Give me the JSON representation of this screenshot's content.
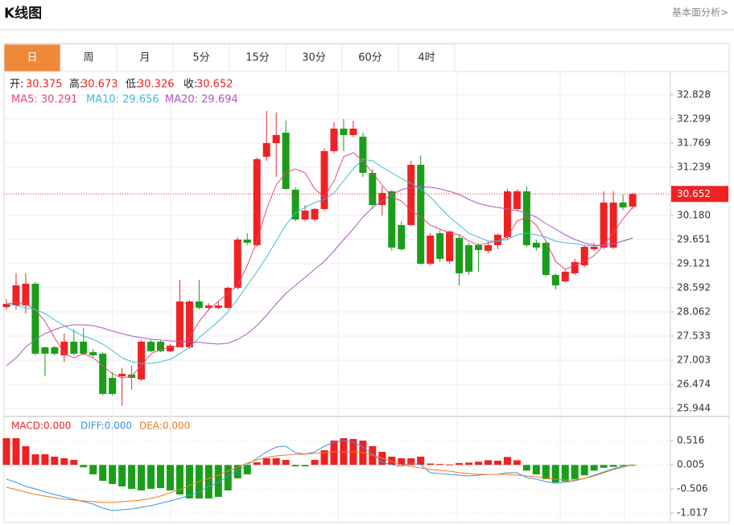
{
  "header": {
    "title": "K线图",
    "link": "基本面分析>"
  },
  "tabs": [
    "日",
    "周",
    "月",
    "5分",
    "15分",
    "30分",
    "60分",
    "4时"
  ],
  "active_tab": 0,
  "chart_data": [
    {
      "type": "candlestick",
      "info": [
        {
          "label": "开:",
          "value": "30.375"
        },
        {
          "label": "高:",
          "value": "30.673"
        },
        {
          "label": "低:",
          "value": "30.326"
        },
        {
          "label": "收:",
          "value": "30.652"
        }
      ],
      "up_color": "#ee2222",
      "down_color": "#1a9e1a",
      "open": [
        28.168,
        28.204,
        28.204,
        28.681,
        27.286,
        27.286,
        27.11,
        27.409,
        27.409,
        27.18,
        27.145,
        26.615,
        26.651,
        26.686,
        26.58,
        27.409,
        27.409,
        27.198,
        27.286,
        27.286,
        28.292,
        28.151,
        28.151,
        28.151,
        28.592,
        29.651,
        29.528,
        31.469,
        31.769,
        31.998,
        30.745,
        30.092,
        30.092,
        30.322,
        31.593,
        32.087,
        31.946,
        31.91,
        31.116,
        30.41,
        30.71,
        29.969,
        29.969,
        31.292,
        29.121,
        29.792,
        29.174,
        29.687,
        29.528,
        29.528,
        29.404,
        29.528,
        29.704,
        30.322,
        30.71,
        29.581,
        29.581,
        28.874,
        28.733,
        28.91,
        29.086,
        29.439,
        29.475,
        29.475,
        30.463,
        30.375
      ],
      "high": [
        28.345,
        28.91,
        28.91,
        28.72,
        27.3,
        27.32,
        27.586,
        27.674,
        27.709,
        27.25,
        27.18,
        26.739,
        26.827,
        26.88,
        27.45,
        27.45,
        27.44,
        27.35,
        28.769,
        28.32,
        28.769,
        28.25,
        28.292,
        28.62,
        29.7,
        29.792,
        31.45,
        32.475,
        32.44,
        32.263,
        30.8,
        30.41,
        30.35,
        31.65,
        32.228,
        32.3,
        32.263,
        31.998,
        31.2,
        30.816,
        30.74,
        30.05,
        31.381,
        31.5,
        29.792,
        29.85,
        29.85,
        29.757,
        29.581,
        29.581,
        29.6,
        29.792,
        30.76,
        30.75,
        30.816,
        29.651,
        29.628,
        28.91,
        29.0,
        29.227,
        29.528,
        29.581,
        30.71,
        30.71,
        30.64,
        30.673
      ],
      "low": [
        28.116,
        28.116,
        28.027,
        27.11,
        26.651,
        27.11,
        26.968,
        27.11,
        27.11,
        27.05,
        26.227,
        26.227,
        25.997,
        26.351,
        26.55,
        27.18,
        27.18,
        27.18,
        27.286,
        27.25,
        28.116,
        28.1,
        28.116,
        28.116,
        28.557,
        29.528,
        29.492,
        31.381,
        31.028,
        30.745,
        30.05,
        30.05,
        30.05,
        30.286,
        31.55,
        31.593,
        31.9,
        31.028,
        30.322,
        30.18,
        29.404,
        29.404,
        29.95,
        29.1,
        29.086,
        29.157,
        29.121,
        28.645,
        28.874,
        28.945,
        29.35,
        29.439,
        29.651,
        30.286,
        29.492,
        29.404,
        28.85,
        28.557,
        28.7,
        28.874,
        29.05,
        29.404,
        29.439,
        29.439,
        30.3,
        30.326
      ],
      "close": [
        28.239,
        28.645,
        28.681,
        27.145,
        27.145,
        27.145,
        27.409,
        27.145,
        27.145,
        27.11,
        26.262,
        26.262,
        26.704,
        26.615,
        27.409,
        27.198,
        27.198,
        27.321,
        28.292,
        28.292,
        28.151,
        28.204,
        28.204,
        28.592,
        29.651,
        29.581,
        31.416,
        31.769,
        31.946,
        30.763,
        30.092,
        30.286,
        30.322,
        31.593,
        32.087,
        31.946,
        32.087,
        31.116,
        30.41,
        30.675,
        29.475,
        29.439,
        31.292,
        29.121,
        29.739,
        29.227,
        29.828,
        28.91,
        28.945,
        29.421,
        29.528,
        29.757,
        30.71,
        30.71,
        29.528,
        29.475,
        28.874,
        28.645,
        28.945,
        29.157,
        29.492,
        29.492,
        30.463,
        30.463,
        30.357,
        30.652
      ],
      "series": [
        {
          "name": "MA5: 30.291",
          "color": "#e8457e",
          "values": [
            28.239,
            28.274,
            28.239,
            28.115,
            27.851,
            27.498,
            27.145,
            27.056,
            27.145,
            27.056,
            26.88,
            26.703,
            26.615,
            26.65,
            26.88,
            27.145,
            27.233,
            27.286,
            27.321,
            27.498,
            27.851,
            28.115,
            28.292,
            28.468,
            28.645,
            29.086,
            29.616,
            30.322,
            30.851,
            31.116,
            31.204,
            31.116,
            30.763,
            30.586,
            30.939,
            31.469,
            31.557,
            31.381,
            31.116,
            30.851,
            30.586,
            30.498,
            30.286,
            30.145,
            29.969,
            29.88,
            29.792,
            29.757,
            29.616,
            29.527,
            29.58,
            29.616,
            29.704,
            30.057,
            30.145,
            29.969,
            29.616,
            29.174,
            28.998,
            29.086,
            29.174,
            29.298,
            29.527,
            29.792,
            30.11,
            30.357
          ]
        },
        {
          "name": "MA10: 29.656",
          "color": "#3cbcd8",
          "values": [
            28.239,
            28.204,
            28.151,
            28.115,
            28.027,
            27.886,
            27.762,
            27.639,
            27.533,
            27.462,
            27.356,
            27.215,
            27.056,
            26.968,
            26.933,
            26.933,
            26.968,
            27.021,
            27.145,
            27.286,
            27.498,
            27.674,
            27.851,
            28.062,
            28.345,
            28.645,
            28.945,
            29.263,
            29.616,
            29.969,
            30.233,
            30.357,
            30.463,
            30.533,
            30.675,
            30.939,
            31.204,
            31.416,
            31.381,
            31.239,
            31.116,
            30.992,
            30.886,
            30.763,
            30.586,
            30.357,
            30.145,
            29.969,
            29.792,
            29.704,
            29.616,
            29.616,
            29.651,
            29.757,
            29.792,
            29.757,
            29.704,
            29.616,
            29.58,
            29.563,
            29.527,
            29.51,
            29.527,
            29.563,
            29.616,
            29.686
          ]
        },
        {
          "name": "MA20: 29.694",
          "color": "#b155c4",
          "values": [
            26.88,
            27.056,
            27.286,
            27.462,
            27.586,
            27.674,
            27.745,
            27.78,
            27.78,
            27.762,
            27.709,
            27.639,
            27.586,
            27.533,
            27.498,
            27.462,
            27.445,
            27.427,
            27.409,
            27.409,
            27.392,
            27.374,
            27.356,
            27.374,
            27.462,
            27.586,
            27.762,
            27.992,
            28.239,
            28.468,
            28.645,
            28.821,
            28.998,
            29.174,
            29.404,
            29.651,
            29.88,
            30.145,
            30.357,
            30.498,
            30.64,
            30.745,
            30.798,
            30.816,
            30.798,
            30.763,
            30.71,
            30.64,
            30.533,
            30.445,
            30.392,
            30.357,
            30.322,
            30.286,
            30.233,
            30.145,
            30.004,
            29.88,
            29.757,
            29.651,
            29.58,
            29.527,
            29.527,
            29.563,
            29.616,
            29.686
          ]
        }
      ],
      "ylim": [
        25.767,
        33.322
      ],
      "yticks": [
        32.828,
        32.299,
        31.769,
        31.239,
        {
          "value": 30.18,
          "label": "30.180"
        },
        29.651,
        29.121,
        28.592,
        28.062,
        27.533,
        27.003,
        26.474,
        25.944
      ],
      "last_price": 30.652,
      "grid": true
    },
    {
      "type": "macd",
      "histogram_name": "MACD:0.000",
      "values": [
        0.567,
        0.567,
        0.397,
        0.226,
        0.226,
        0.175,
        0.141,
        0.107,
        -0.05,
        -0.199,
        -0.336,
        -0.404,
        -0.455,
        -0.506,
        -0.54,
        -0.506,
        -0.489,
        -0.54,
        -0.625,
        -0.71,
        -0.71,
        -0.71,
        -0.676,
        -0.54,
        -0.285,
        -0.199,
        0.056,
        0.141,
        0.141,
        0.107,
        -0.03,
        -0.03,
        0.107,
        0.311,
        0.516,
        0.567,
        0.55,
        0.516,
        0.397,
        0.278,
        0.175,
        0.141,
        0.141,
        0.175,
        0.03,
        0.02,
        0.01,
        0.04,
        0.05,
        0.07,
        0.1,
        0.09,
        0.17,
        0.1,
        -0.12,
        -0.2,
        -0.3,
        -0.37,
        -0.35,
        -0.3,
        -0.22,
        -0.12,
        -0.06,
        -0.04,
        -0.02,
        -0.01
      ],
      "series": [
        {
          "name": "DIFF:0.000",
          "color": "#3a95e0",
          "values": [
            -0.302,
            -0.37,
            -0.455,
            -0.506,
            -0.574,
            -0.625,
            -0.676,
            -0.727,
            -0.778,
            -0.829,
            -0.915,
            -0.966,
            -0.949,
            -0.932,
            -0.898,
            -0.864,
            -0.812,
            -0.761,
            -0.71,
            -0.642,
            -0.574,
            -0.455,
            -0.37,
            -0.233,
            -0.114,
            0.005,
            0.141,
            0.277,
            0.38,
            0.397,
            0.26,
            0.226,
            0.277,
            0.397,
            0.482,
            0.516,
            0.482,
            0.38,
            0.226,
            0.056,
            0.005,
            -0.029,
            0.039,
            0.005,
            -0.165,
            -0.182,
            -0.199,
            -0.216,
            -0.233,
            -0.216,
            -0.199,
            -0.199,
            -0.165,
            -0.165,
            -0.267,
            -0.302,
            -0.353,
            -0.387,
            -0.37,
            -0.336,
            -0.285,
            -0.216,
            -0.148,
            -0.08,
            -0.029,
            0.005
          ]
        },
        {
          "name": "DEA:0.000",
          "color": "#f07a1e",
          "values": [
            -0.472,
            -0.523,
            -0.574,
            -0.625,
            -0.659,
            -0.693,
            -0.727,
            -0.744,
            -0.761,
            -0.778,
            -0.795,
            -0.795,
            -0.778,
            -0.761,
            -0.744,
            -0.71,
            -0.659,
            -0.591,
            -0.523,
            -0.438,
            -0.353,
            -0.285,
            -0.216,
            -0.131,
            -0.046,
            0.039,
            0.107,
            0.158,
            0.192,
            0.209,
            0.226,
            0.226,
            0.243,
            0.26,
            0.277,
            0.277,
            0.277,
            0.26,
            0.209,
            0.141,
            0.073,
            0.005,
            -0.029,
            -0.063,
            -0.097,
            -0.114,
            -0.131,
            -0.165,
            -0.182,
            -0.199,
            -0.199,
            -0.199,
            -0.199,
            -0.216,
            -0.233,
            -0.25,
            -0.285,
            -0.302,
            -0.319,
            -0.319,
            -0.285,
            -0.233,
            -0.165,
            -0.097,
            -0.046,
            0.005
          ]
        }
      ],
      "up_color": "#ee2222",
      "down_color": "#1a9e1a",
      "ylim": [
        -1.221,
        0.993
      ],
      "yticks": [
        0.516,
        0.005,
        -0.506,
        -1.017
      ],
      "grid": true
    }
  ]
}
